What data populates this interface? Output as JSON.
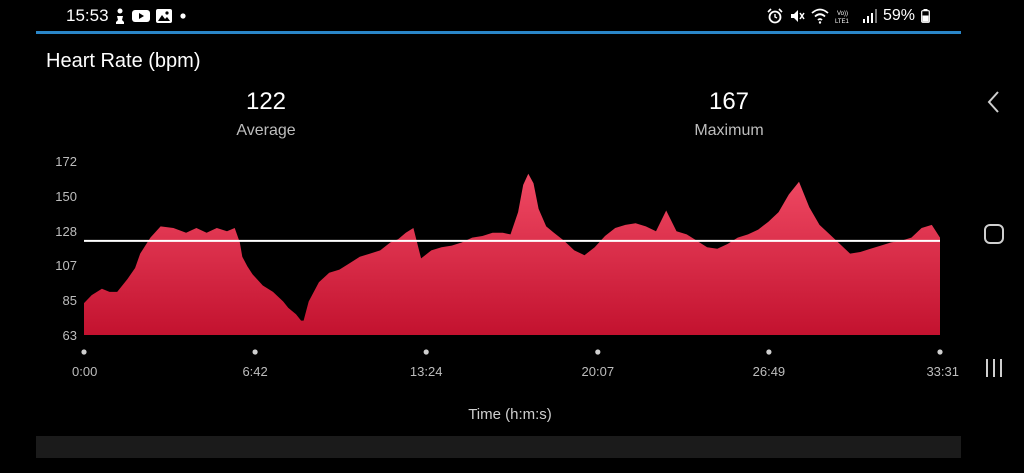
{
  "status_bar": {
    "time": "15:53",
    "battery_percent": "59%",
    "icons_left": [
      "chess-pawn-icon",
      "youtube-icon",
      "image-icon",
      "dot-icon"
    ],
    "icons_right": [
      "alarm-icon",
      "mute-icon",
      "wifi-icon",
      "volte-icon",
      "signal-icon",
      "battery-icon"
    ]
  },
  "panel": {
    "title": "Heart Rate (bpm)",
    "stats": [
      {
        "value": "122",
        "label": "Average"
      },
      {
        "value": "167",
        "label": "Maximum"
      }
    ]
  },
  "chart_data": {
    "type": "area",
    "title": "Heart Rate (bpm)",
    "xlabel": "Time (h:m:s)",
    "ylabel": "",
    "y_tick_labels": [
      "172",
      "150",
      "128",
      "107",
      "85",
      "63"
    ],
    "y_ticks": [
      172,
      150,
      128,
      107,
      85,
      63
    ],
    "ylim": [
      63,
      172
    ],
    "x_tick_labels": [
      "0:00",
      "6:42",
      "13:24",
      "20:07",
      "26:49",
      "33:31"
    ],
    "x_ticks_min": [
      0,
      6.7,
      13.4,
      20.12,
      26.82,
      33.52
    ],
    "xlim": [
      0,
      33.52
    ],
    "average_line": 122,
    "x": [
      0,
      0.3,
      0.7,
      1,
      1.3,
      1.7,
      2,
      2.2,
      2.6,
      3,
      3.5,
      4,
      4.4,
      4.8,
      5.2,
      5.6,
      5.9,
      6.1,
      6.2,
      6.4,
      6.6,
      7,
      7.4,
      7.8,
      8,
      8.3,
      8.5,
      8.6,
      8.8,
      9.2,
      9.6,
      10,
      10.4,
      10.8,
      11.2,
      11.6,
      12,
      12.3,
      12.6,
      12.9,
      13.2,
      13.6,
      14,
      14.4,
      14.8,
      15.2,
      15.6,
      16,
      16.4,
      16.7,
      17,
      17.2,
      17.4,
      17.6,
      17.8,
      18.1,
      18.4,
      18.8,
      19.2,
      19.6,
      20,
      20.4,
      20.8,
      21.2,
      21.6,
      22,
      22.4,
      22.8,
      23.2,
      23.6,
      24,
      24.4,
      24.8,
      25.2,
      25.6,
      26,
      26.4,
      26.8,
      27.2,
      27.6,
      28,
      28.4,
      28.8,
      29.2,
      29.6,
      30,
      30.4,
      30.8,
      31.2,
      31.6,
      32,
      32.4,
      32.8,
      33.2,
      33.52
    ],
    "values": [
      83,
      88,
      92,
      90,
      90,
      98,
      105,
      114,
      124,
      131,
      130,
      127,
      130,
      127,
      130,
      128,
      130,
      121,
      112,
      106,
      101,
      94,
      90,
      84,
      80,
      76,
      72,
      72,
      84,
      96,
      102,
      104,
      108,
      112,
      114,
      116,
      121,
      123,
      127,
      130,
      111,
      116,
      118,
      119,
      121,
      124,
      125,
      127,
      127,
      126,
      140,
      157,
      164,
      158,
      142,
      131,
      127,
      122,
      116,
      113,
      118,
      125,
      130,
      132,
      133,
      131,
      128,
      141,
      128,
      126,
      122,
      118,
      117,
      120,
      124,
      126,
      129,
      134,
      140,
      151,
      159,
      143,
      132,
      126,
      120,
      114,
      115,
      117,
      119,
      121,
      122,
      124,
      130,
      132,
      124
    ]
  }
}
